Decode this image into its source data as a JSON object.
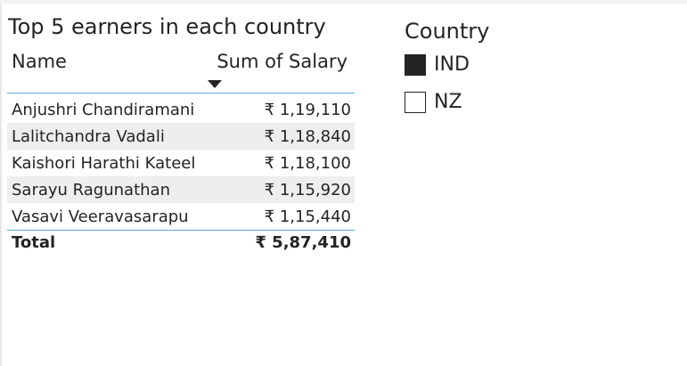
{
  "table": {
    "title": "Top 5 earners in each country",
    "columns": {
      "name": "Name",
      "salary": "Sum of Salary"
    },
    "sort": {
      "column": "Sum of Salary",
      "direction": "descending"
    },
    "rows": [
      {
        "name": "Anjushri Chandiramani",
        "salary": "₹ 1,19,110"
      },
      {
        "name": "Lalitchandra Vadali",
        "salary": "₹ 1,18,840"
      },
      {
        "name": "Kaishori Harathi Kateel",
        "salary": "₹ 1,18,100"
      },
      {
        "name": "Sarayu Ragunathan",
        "salary": "₹ 1,15,920"
      },
      {
        "name": "Vasavi Veeravasarapu",
        "salary": "₹ 1,15,440"
      }
    ],
    "total": {
      "label": "Total",
      "value": "₹ 5,87,410"
    }
  },
  "slicer": {
    "title": "Country",
    "items": [
      {
        "label": "IND",
        "checked": true
      },
      {
        "label": "NZ",
        "checked": false
      }
    ]
  },
  "colors": {
    "accent_line": "#5ca8dc",
    "alt_row": "#eeeeee",
    "text": "#252423"
  }
}
